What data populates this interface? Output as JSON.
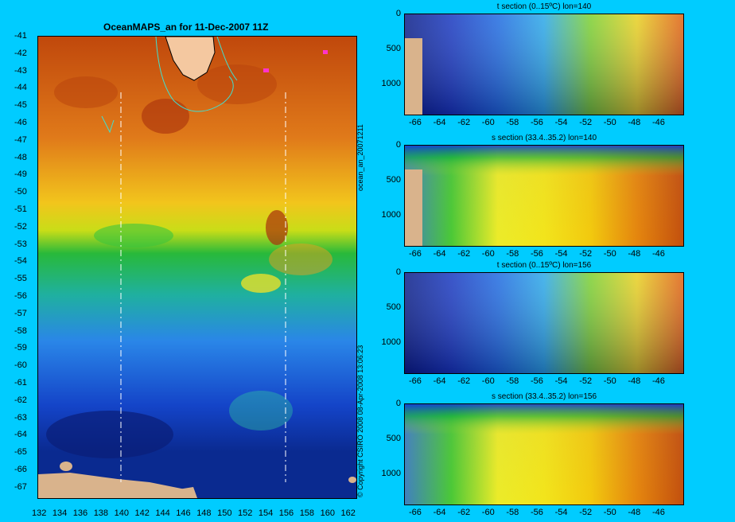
{
  "map": {
    "title": "OceanMAPS_an for 11-Dec-2007 11Z",
    "lat_labels": [
      "-41",
      "-42",
      "-43",
      "-44",
      "-45",
      "-46",
      "-47",
      "-48",
      "-49",
      "-50",
      "-51",
      "-52",
      "-53",
      "-54",
      "-55",
      "-56",
      "-57",
      "-58",
      "-59",
      "-60",
      "-61",
      "-62",
      "-63",
      "-64",
      "-65",
      "-66",
      "-67"
    ],
    "lon_labels": [
      "132",
      "134",
      "136",
      "138",
      "140",
      "142",
      "144",
      "146",
      "148",
      "150",
      "152",
      "154",
      "156",
      "158",
      "160",
      "162"
    ],
    "section_lines": [
      "140",
      "156"
    ]
  },
  "side_text": {
    "file": "ocean_an_20071211",
    "copyright": "© Copyright CSIRO 2008   08-Apr-2008 13:06:23"
  },
  "sections": [
    {
      "title": "t section (0..15ºC) lon=140",
      "depth_labels": [
        "0",
        "500",
        "1000"
      ],
      "x_labels": [
        "-66",
        "-64",
        "-62",
        "-60",
        "-58",
        "-56",
        "-54",
        "-52",
        "-50",
        "-48",
        "-46"
      ]
    },
    {
      "title": "s section (33.4..35.2) lon=140",
      "depth_labels": [
        "0",
        "500",
        "1000"
      ],
      "x_labels": [
        "-66",
        "-64",
        "-62",
        "-60",
        "-58",
        "-56",
        "-54",
        "-52",
        "-50",
        "-48",
        "-46"
      ]
    },
    {
      "title": "t section (0..15ºC) lon=156",
      "depth_labels": [
        "0",
        "500",
        "1000"
      ],
      "x_labels": [
        "-66",
        "-64",
        "-62",
        "-60",
        "-58",
        "-56",
        "-54",
        "-52",
        "-50",
        "-48",
        "-46"
      ]
    },
    {
      "title": "s section (33.4..35.2) lon=156",
      "depth_labels": [
        "0",
        "500",
        "1000"
      ],
      "x_labels": [
        "-66",
        "-64",
        "-62",
        "-60",
        "-58",
        "-56",
        "-54",
        "-52",
        "-50",
        "-48",
        "-46"
      ]
    }
  ],
  "colors": {
    "background": "#00ccff",
    "land": "#d9b38c",
    "warm": "#c85a10",
    "mid": "#22bb33",
    "cold": "#0a2a9a"
  }
}
